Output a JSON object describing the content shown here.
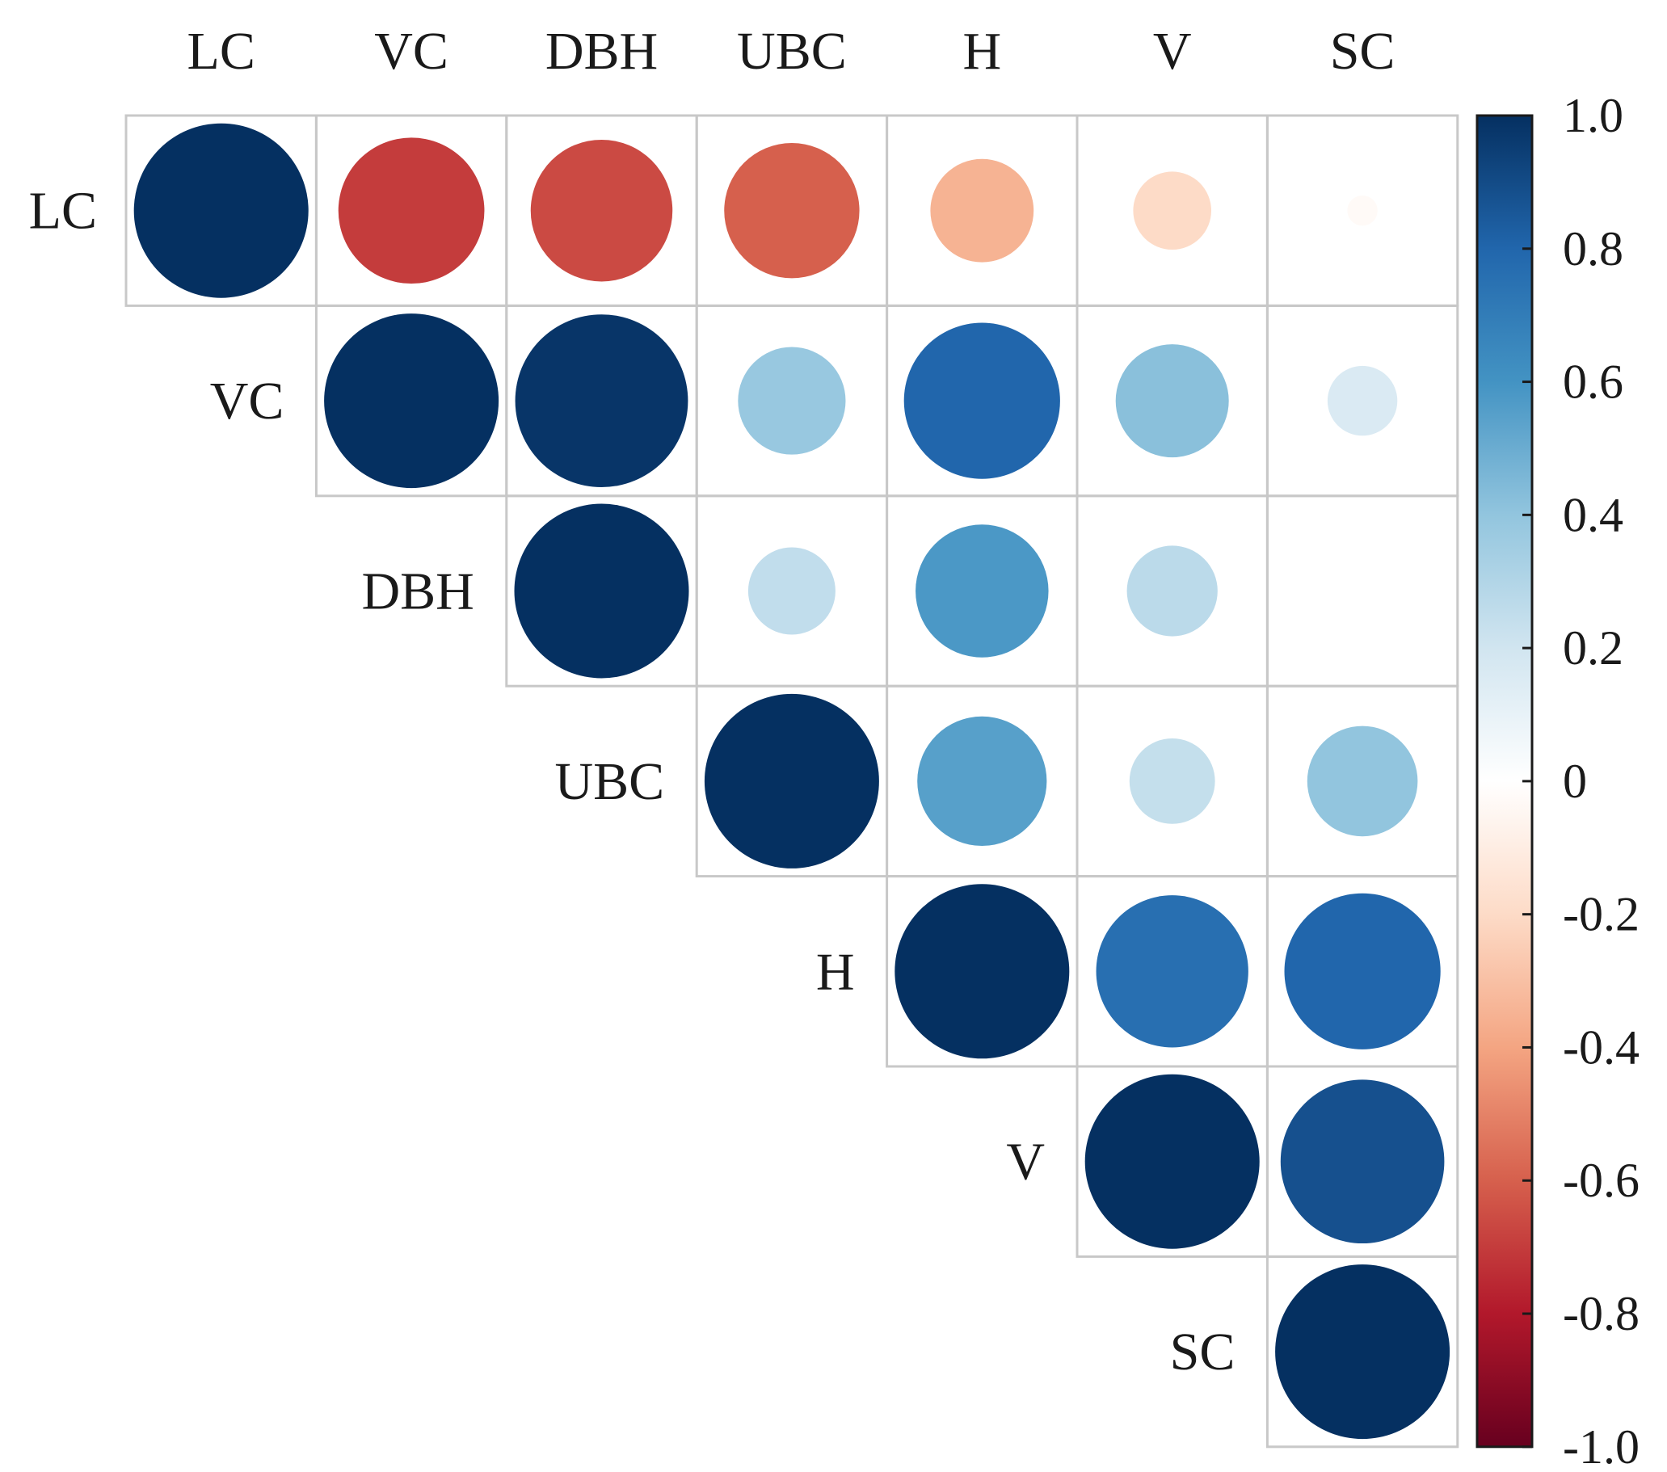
{
  "chart_data": {
    "type": "heatmap",
    "subtype": "correlation-upper-triangle-circles",
    "variables": [
      "LC",
      "VC",
      "DBH",
      "UBC",
      "H",
      "V",
      "SC"
    ],
    "matrix": [
      [
        1.0,
        -0.7,
        -0.66,
        -0.6,
        -0.35,
        -0.2,
        -0.03
      ],
      [
        null,
        1.0,
        0.98,
        0.38,
        0.8,
        0.42,
        0.16
      ],
      [
        null,
        null,
        1.0,
        0.25,
        0.58,
        0.27,
        0.0
      ],
      [
        null,
        null,
        null,
        1.0,
        0.55,
        0.24,
        0.4
      ],
      [
        null,
        null,
        null,
        null,
        1.0,
        0.76,
        0.8
      ],
      [
        null,
        null,
        null,
        null,
        null,
        1.0,
        0.88
      ],
      [
        null,
        null,
        null,
        null,
        null,
        null,
        1.0
      ]
    ],
    "colorbar": {
      "range": [
        -1.0,
        1.0
      ],
      "ticks": [
        1.0,
        0.8,
        0.6,
        0.4,
        0.2,
        0,
        -0.2,
        -0.4,
        -0.6,
        -0.8,
        -1.0
      ],
      "tick_labels": [
        "1.0",
        "0.8",
        "0.6",
        "0.4",
        "0.2",
        "0",
        "-0.2",
        "-0.4",
        "-0.6",
        "-0.8",
        "-1.0"
      ],
      "placement": "right"
    },
    "palette": {
      "negative_end": "#67001f",
      "mid": "#ffffff",
      "positive_end": "#053061",
      "stops": [
        "#67001f",
        "#b2182b",
        "#d6604d",
        "#f4a582",
        "#fddbc7",
        "#ffffff",
        "#d1e5f0",
        "#92c5de",
        "#4393c3",
        "#2166ac",
        "#053061"
      ]
    },
    "grid": true,
    "title": "",
    "xlabel": "",
    "ylabel": ""
  }
}
